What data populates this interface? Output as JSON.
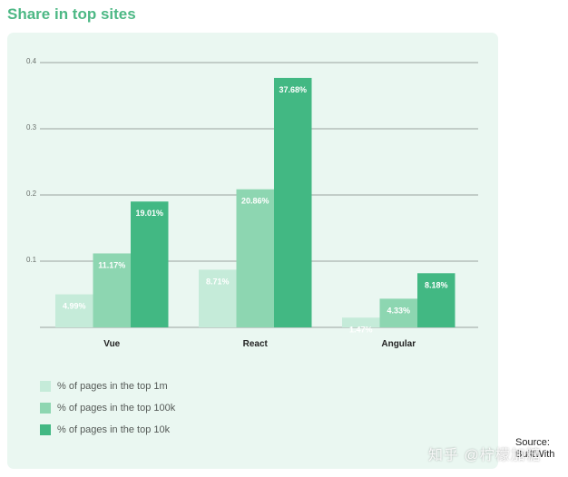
{
  "title": "Share in top sites",
  "source": "Source: BuiltWith",
  "watermark": "知乎 @柠檬加糖",
  "colors": {
    "panel_bg": "#eaf7f1",
    "title": "#4db885",
    "gridline": "#9aa39e",
    "tick_text": "#6a706c",
    "label_text": "#ffffff",
    "category_text": "#222222"
  },
  "chart_data": {
    "type": "bar",
    "title": "Share in top sites",
    "xlabel": "",
    "ylabel": "",
    "ylim": [
      0,
      0.4
    ],
    "yticks": [
      "0.1",
      "0.2",
      "0.3",
      "0.4"
    ],
    "grid": true,
    "legend_position": "bottom-left",
    "categories": [
      "Vue",
      "React",
      "Angular"
    ],
    "series": [
      {
        "name": "% of pages in the top 1m",
        "color": "#c5ebd9",
        "values": [
          0.0499,
          0.0871,
          0.0147
        ],
        "labels": [
          "4.99%",
          "8.71%",
          "1.47%"
        ]
      },
      {
        "name": "% of pages in the top 100k",
        "color": "#8dd6b1",
        "values": [
          0.1117,
          0.2086,
          0.0433
        ],
        "labels": [
          "11.17%",
          "20.86%",
          "4.33%"
        ]
      },
      {
        "name": "% of pages in the top 10k",
        "color": "#42b883",
        "values": [
          0.1901,
          0.3768,
          0.0818
        ],
        "labels": [
          "19.01%",
          "37.68%",
          "8.18%"
        ]
      }
    ]
  }
}
